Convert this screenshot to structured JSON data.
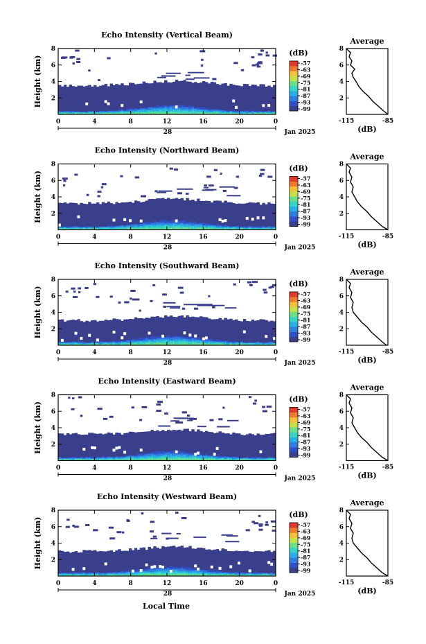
{
  "figure": {
    "xlabel": "Local Time",
    "date_label": "Jan 2025"
  },
  "chart_data": [
    {
      "type": "heatmap",
      "title": "Echo Intensity (Vertical Beam)",
      "ylabel": "Height (km)",
      "xlabel": "Local Time",
      "x_ticks": [
        "0",
        "4",
        "8",
        "12",
        "16",
        "20",
        "0"
      ],
      "x_secondary": "28",
      "date_label": "Jan 2025",
      "xlim": [
        0,
        24
      ],
      "y_ticks": [
        "2",
        "4",
        "6",
        "8"
      ],
      "ylim": [
        0,
        8
      ],
      "grid": false,
      "colorbar": {
        "unit": "(dB)",
        "ticks": [
          "-57",
          "-63",
          "-69",
          "-75",
          "-81",
          "-87",
          "-93",
          "-99"
        ],
        "range": [
          -99,
          -57
        ]
      },
      "layer": {
        "top_km": 3.5,
        "bottom_km": 0,
        "scattered_echo_top_km": 8
      },
      "profile": {
        "title": "Average",
        "xlabel": "(dB)",
        "x_ticks": [
          "-115",
          "-85"
        ],
        "xlim": [
          -115,
          -85
        ],
        "y_ticks": [
          "2",
          "4",
          "6",
          "8"
        ],
        "ylim": [
          0,
          8
        ],
        "values": [
          [
            -85,
            0
          ],
          [
            -88,
            0.4
          ],
          [
            -92,
            1.0
          ],
          [
            -96,
            1.6
          ],
          [
            -99,
            2.2
          ],
          [
            -103,
            2.8
          ],
          [
            -106,
            3.4
          ],
          [
            -108,
            4.0
          ],
          [
            -110,
            4.5
          ],
          [
            -111,
            5.0
          ],
          [
            -109,
            5.5
          ],
          [
            -112,
            6.0
          ],
          [
            -111,
            6.5
          ],
          [
            -113,
            7.0
          ],
          [
            -112,
            7.5
          ],
          [
            -115,
            8.0
          ]
        ]
      }
    },
    {
      "type": "heatmap",
      "title": "Echo Intensity (Northward Beam)",
      "ylabel": "Height (km)",
      "xlabel": "Local Time",
      "x_ticks": [
        "0",
        "4",
        "8",
        "12",
        "16",
        "20",
        "0"
      ],
      "x_secondary": "28",
      "date_label": "Jan 2025",
      "xlim": [
        0,
        24
      ],
      "y_ticks": [
        "2",
        "4",
        "6",
        "8"
      ],
      "ylim": [
        0,
        8
      ],
      "grid": false,
      "colorbar": {
        "unit": "(dB)",
        "ticks": [
          "-57",
          "-63",
          "-69",
          "-75",
          "-81",
          "-87",
          "-93",
          "-99"
        ],
        "range": [
          -99,
          -57
        ]
      },
      "layer": {
        "top_km": 3.2,
        "bottom_km": 0,
        "scattered_echo_top_km": 8
      },
      "profile": {
        "title": "Average",
        "xlabel": "(dB)",
        "x_ticks": [
          "-115",
          "-85"
        ],
        "xlim": [
          -115,
          -85
        ],
        "y_ticks": [
          "2",
          "4",
          "6",
          "8"
        ],
        "ylim": [
          0,
          8
        ],
        "values": [
          [
            -85,
            0
          ],
          [
            -89,
            0.4
          ],
          [
            -93,
            1.0
          ],
          [
            -97,
            1.6
          ],
          [
            -100,
            2.2
          ],
          [
            -104,
            2.8
          ],
          [
            -107,
            3.4
          ],
          [
            -109,
            4.0
          ],
          [
            -111,
            4.6
          ],
          [
            -110,
            5.2
          ],
          [
            -112,
            5.8
          ],
          [
            -111,
            6.4
          ],
          [
            -113,
            7.0
          ],
          [
            -112,
            7.5
          ],
          [
            -115,
            8.0
          ]
        ]
      }
    },
    {
      "type": "heatmap",
      "title": "Echo Intensity (Southward Beam)",
      "ylabel": "Height (km)",
      "xlabel": "Local Time",
      "x_ticks": [
        "0",
        "4",
        "8",
        "12",
        "16",
        "20",
        "0"
      ],
      "x_secondary": "28",
      "date_label": "Jan 2025",
      "xlim": [
        0,
        24
      ],
      "y_ticks": [
        "2",
        "4",
        "6",
        "8"
      ],
      "ylim": [
        0,
        8
      ],
      "grid": false,
      "colorbar": {
        "unit": "(dB)",
        "ticks": [
          "-57",
          "-63",
          "-69",
          "-75",
          "-81",
          "-87",
          "-93",
          "-99"
        ],
        "range": [
          -99,
          -57
        ]
      },
      "layer": {
        "top_km": 3.0,
        "bottom_km": 0,
        "scattered_echo_top_km": 8
      },
      "profile": {
        "title": "Average",
        "xlabel": "(dB)",
        "x_ticks": [
          "-115",
          "-85"
        ],
        "xlim": [
          -115,
          -85
        ],
        "y_ticks": [
          "2",
          "4",
          "6",
          "8"
        ],
        "ylim": [
          0,
          8
        ],
        "values": [
          [
            -86,
            0
          ],
          [
            -89,
            0.4
          ],
          [
            -93,
            1.0
          ],
          [
            -97,
            1.6
          ],
          [
            -100,
            2.2
          ],
          [
            -104,
            2.8
          ],
          [
            -107,
            3.4
          ],
          [
            -110,
            4.0
          ],
          [
            -111,
            4.6
          ],
          [
            -110,
            5.2
          ],
          [
            -112,
            5.8
          ],
          [
            -111,
            6.4
          ],
          [
            -113,
            7.0
          ],
          [
            -112,
            7.5
          ],
          [
            -115,
            8.0
          ]
        ]
      }
    },
    {
      "type": "heatmap",
      "title": "Echo Intensity (Eastward Beam)",
      "ylabel": "Height (km)",
      "xlabel": "Local Time",
      "x_ticks": [
        "0",
        "4",
        "8",
        "12",
        "16",
        "20",
        "0"
      ],
      "x_secondary": "28",
      "date_label": "Jan 2025",
      "xlim": [
        0,
        24
      ],
      "y_ticks": [
        "2",
        "4",
        "6",
        "8"
      ],
      "ylim": [
        0,
        8
      ],
      "grid": false,
      "colorbar": {
        "unit": "(dB)",
        "ticks": [
          "-57",
          "-63",
          "-69",
          "-75",
          "-81",
          "-87",
          "-93",
          "-99"
        ],
        "range": [
          -99,
          -57
        ]
      },
      "layer": {
        "top_km": 3.2,
        "bottom_km": 0,
        "scattered_echo_top_km": 8
      },
      "profile": {
        "title": "Average",
        "xlabel": "(dB)",
        "x_ticks": [
          "-115",
          "-85"
        ],
        "xlim": [
          -115,
          -85
        ],
        "y_ticks": [
          "2",
          "4",
          "6",
          "8"
        ],
        "ylim": [
          0,
          8
        ],
        "values": [
          [
            -85,
            0
          ],
          [
            -89,
            0.4
          ],
          [
            -93,
            1.0
          ],
          [
            -97,
            1.6
          ],
          [
            -100,
            2.2
          ],
          [
            -104,
            2.8
          ],
          [
            -107,
            3.4
          ],
          [
            -109,
            4.0
          ],
          [
            -111,
            4.6
          ],
          [
            -110,
            5.2
          ],
          [
            -112,
            5.8
          ],
          [
            -111,
            6.4
          ],
          [
            -113,
            7.0
          ],
          [
            -112,
            7.5
          ],
          [
            -115,
            8.0
          ]
        ]
      }
    },
    {
      "type": "heatmap",
      "title": "Echo Intensity (Westward Beam)",
      "ylabel": "Height (km)",
      "xlabel": "Local Time",
      "x_ticks": [
        "0",
        "4",
        "8",
        "12",
        "16",
        "20",
        "0"
      ],
      "x_secondary": "28",
      "date_label": "Jan 2025",
      "xlim": [
        0,
        24
      ],
      "y_ticks": [
        "2",
        "4",
        "6",
        "8"
      ],
      "ylim": [
        0,
        8
      ],
      "grid": false,
      "colorbar": {
        "unit": "(dB)",
        "ticks": [
          "-57",
          "-63",
          "-69",
          "-75",
          "-81",
          "-87",
          "-93",
          "-99"
        ],
        "range": [
          -99,
          -57
        ]
      },
      "layer": {
        "top_km": 3.0,
        "bottom_km": 0,
        "scattered_echo_top_km": 8
      },
      "profile": {
        "title": "Average",
        "xlabel": "(dB)",
        "x_ticks": [
          "-115",
          "-85"
        ],
        "xlim": [
          -115,
          -85
        ],
        "y_ticks": [
          "2",
          "4",
          "6",
          "8"
        ],
        "ylim": [
          0,
          8
        ],
        "values": [
          [
            -85,
            0
          ],
          [
            -89,
            0.4
          ],
          [
            -93,
            1.0
          ],
          [
            -97,
            1.6
          ],
          [
            -100,
            2.2
          ],
          [
            -104,
            2.8
          ],
          [
            -107,
            3.4
          ],
          [
            -110,
            4.0
          ],
          [
            -111,
            4.6
          ],
          [
            -110,
            5.2
          ],
          [
            -112,
            5.8
          ],
          [
            -111,
            6.4
          ],
          [
            -113,
            7.0
          ],
          [
            -112,
            7.5
          ],
          [
            -115,
            8.0
          ]
        ]
      }
    }
  ],
  "palette": [
    "#3a3f8c",
    "#3150c8",
    "#2f7fe0",
    "#2ab0e8",
    "#35d6c8",
    "#6be08a",
    "#c8e04a",
    "#f4c23a",
    "#f07a2e",
    "#e03a2a"
  ],
  "colors": {
    "background_band": "#393e85",
    "axis": "#000000"
  }
}
